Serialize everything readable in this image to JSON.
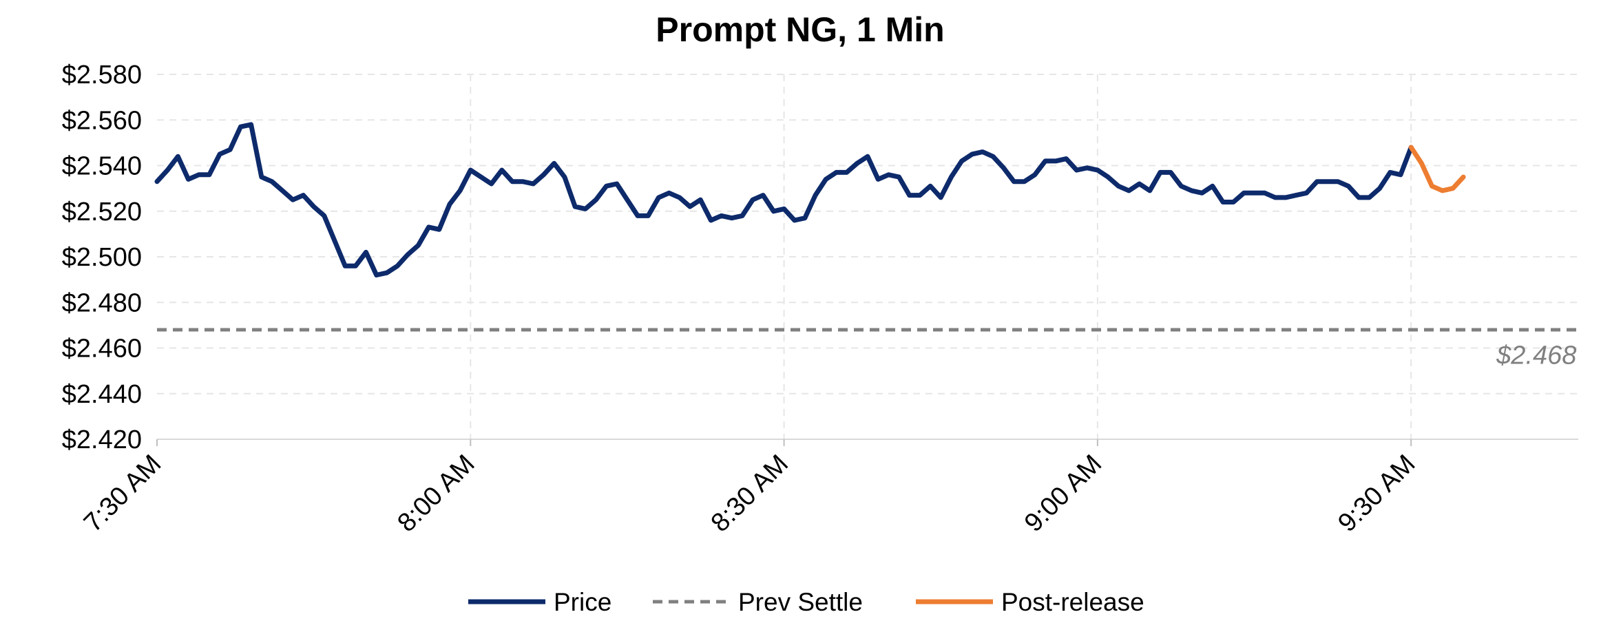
{
  "chart_data": {
    "type": "line",
    "title": "Prompt NG, 1 Min",
    "xlabel": "",
    "ylabel": "",
    "x_start": "7:30 AM",
    "x_tick_labels": [
      "7:30 AM",
      "8:00 AM",
      "8:30 AM",
      "9:00 AM",
      "9:30 AM"
    ],
    "x_tick_minutes": [
      0,
      30,
      60,
      90,
      120
    ],
    "xlim_minutes": [
      0,
      136
    ],
    "y_tick_labels": [
      "$2.420",
      "$2.440",
      "$2.460",
      "$2.480",
      "$2.500",
      "$2.520",
      "$2.540",
      "$2.560",
      "$2.580"
    ],
    "ylim": [
      2.42,
      2.58
    ],
    "grid": true,
    "legend_position": "bottom",
    "series": [
      {
        "name": "Price",
        "color": "#0d2a6b",
        "style": "solid",
        "x": [
          0,
          1,
          2,
          3,
          4,
          5,
          6,
          7,
          8,
          9,
          10,
          11,
          12,
          13,
          14,
          15,
          16,
          17,
          18,
          19,
          20,
          21,
          22,
          23,
          24,
          25,
          26,
          27,
          28,
          29,
          30,
          31,
          32,
          33,
          34,
          35,
          36,
          37,
          38,
          39,
          40,
          41,
          42,
          43,
          44,
          45,
          46,
          47,
          48,
          49,
          50,
          51,
          52,
          53,
          54,
          55,
          56,
          57,
          58,
          59,
          60,
          61,
          62,
          63,
          64,
          65,
          66,
          67,
          68,
          69,
          70,
          71,
          72,
          73,
          74,
          75,
          76,
          77,
          78,
          79,
          80,
          81,
          82,
          83,
          84,
          85,
          86,
          87,
          88,
          89,
          90,
          91,
          92,
          93,
          94,
          95,
          96,
          97,
          98,
          99,
          100,
          101,
          102,
          103,
          104,
          105,
          106,
          107,
          108,
          109,
          110,
          111,
          112,
          113,
          114,
          115,
          116,
          117,
          118,
          119,
          120
        ],
        "values": [
          2.533,
          2.538,
          2.544,
          2.534,
          2.536,
          2.536,
          2.545,
          2.547,
          2.557,
          2.558,
          2.535,
          2.533,
          2.529,
          2.525,
          2.527,
          2.522,
          2.518,
          2.507,
          2.496,
          2.496,
          2.502,
          2.492,
          2.493,
          2.496,
          2.501,
          2.505,
          2.513,
          2.512,
          2.523,
          2.529,
          2.538,
          2.535,
          2.532,
          2.538,
          2.533,
          2.533,
          2.532,
          2.536,
          2.541,
          2.535,
          2.522,
          2.521,
          2.525,
          2.531,
          2.532,
          2.525,
          2.518,
          2.518,
          2.526,
          2.528,
          2.526,
          2.522,
          2.525,
          2.516,
          2.518,
          2.517,
          2.518,
          2.525,
          2.527,
          2.52,
          2.521,
          2.516,
          2.517,
          2.527,
          2.534,
          2.537,
          2.537,
          2.541,
          2.544,
          2.534,
          2.536,
          2.535,
          2.527,
          2.527,
          2.531,
          2.526,
          2.535,
          2.542,
          2.545,
          2.546,
          2.544,
          2.539,
          2.533,
          2.533,
          2.536,
          2.542,
          2.542,
          2.543,
          2.538,
          2.539,
          2.538,
          2.535,
          2.531,
          2.529,
          2.532,
          2.529,
          2.537,
          2.537,
          2.531,
          2.529,
          2.528,
          2.531,
          2.524,
          2.524,
          2.528,
          2.528,
          2.528,
          2.526,
          2.526,
          2.527,
          2.528,
          2.533,
          2.533,
          2.533,
          2.531,
          2.526,
          2.526,
          2.53,
          2.537,
          2.536,
          2.548
        ]
      },
      {
        "name": "Prev Settle",
        "color": "#808080",
        "style": "dashed",
        "x": [
          0,
          136
        ],
        "values": [
          2.468,
          2.468
        ]
      },
      {
        "name": "Post-release",
        "color": "#ed7d31",
        "style": "solid",
        "x": [
          120,
          121,
          122,
          123,
          124,
          125
        ],
        "values": [
          2.548,
          2.541,
          2.531,
          2.529,
          2.53,
          2.535
        ]
      }
    ],
    "annotations": [
      {
        "text": "$2.468",
        "x": 132,
        "y": 2.457,
        "color": "#808080",
        "italic": true
      }
    ]
  }
}
